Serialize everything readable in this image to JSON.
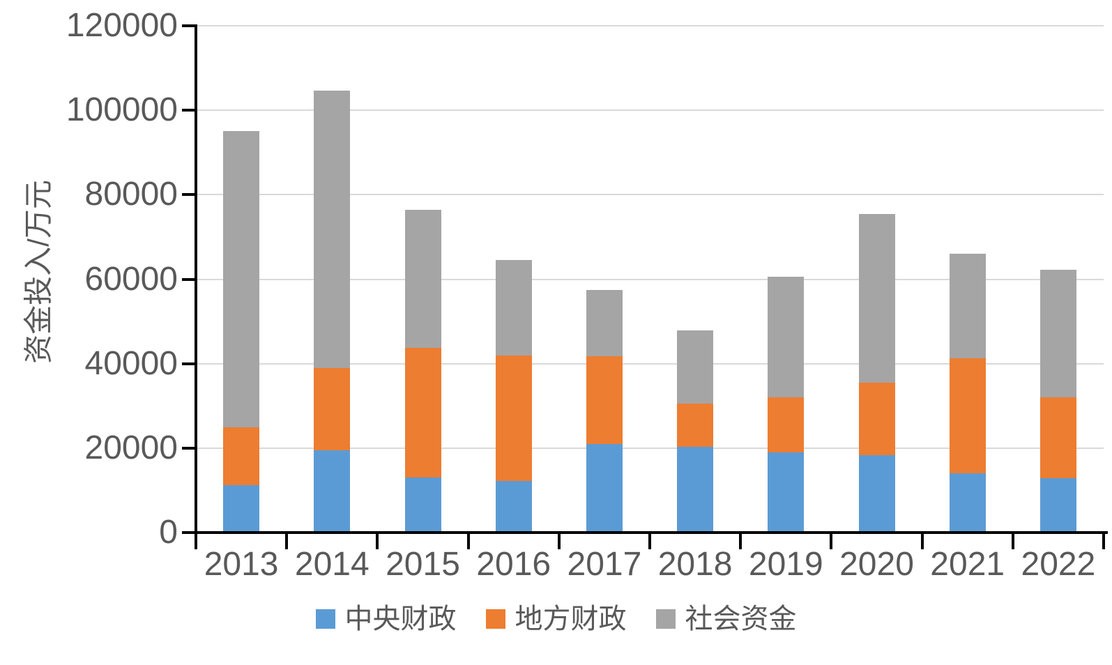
{
  "chart_data": {
    "type": "bar",
    "stacked": true,
    "title": "",
    "categories": [
      "2013",
      "2014",
      "2015",
      "2016",
      "2017",
      "2018",
      "2019",
      "2020",
      "2021",
      "2022"
    ],
    "series": [
      {
        "name": "中央财政",
        "color": "#5B9BD5",
        "values": [
          11300,
          19500,
          13000,
          12200,
          20900,
          20300,
          19000,
          18300,
          14000,
          12800
        ]
      },
      {
        "name": "地方财政",
        "color": "#ED7D31",
        "values": [
          13700,
          19400,
          30700,
          29800,
          20800,
          10300,
          13100,
          17200,
          27300,
          19200
        ]
      },
      {
        "name": "社会资金",
        "color": "#A5A5A5",
        "values": [
          70000,
          65800,
          32700,
          22500,
          15700,
          17300,
          28400,
          39900,
          24700,
          30300
        ]
      }
    ],
    "totals": [
      95000,
      104700,
      76400,
      64500,
      57400,
      47900,
      60500,
      75400,
      66000,
      62300
    ],
    "xlabel": "",
    "ylabel": "资金投入/万元",
    "ylim": [
      0,
      120000
    ],
    "yticks": [
      0,
      20000,
      40000,
      60000,
      80000,
      100000,
      120000
    ],
    "grid": "horizontal",
    "legend_position": "bottom"
  },
  "styles": {
    "axis_color": "#000000",
    "grid_color": "#D9D9D9",
    "text_color": "#595959",
    "background": "#FFFFFF"
  }
}
